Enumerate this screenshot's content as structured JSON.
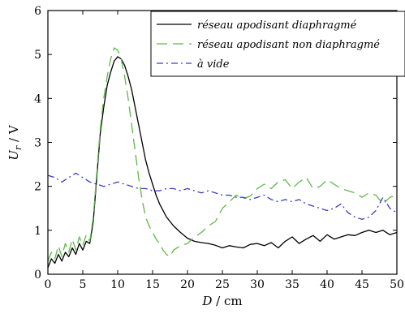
{
  "chart_data": {
    "type": "line",
    "xlabel_var": "D",
    "xlabel_unit": "cm",
    "ylabel_var": "U",
    "ylabel_sub": "r",
    "ylabel_unit": "V",
    "xlim": [
      0,
      50
    ],
    "ylim": [
      0,
      6
    ],
    "xticks": [
      0,
      5,
      10,
      15,
      20,
      25,
      30,
      35,
      40,
      45,
      50
    ],
    "yticks": [
      0,
      1,
      2,
      3,
      4,
      5,
      6
    ],
    "grid": false,
    "legend_position": "top-right",
    "series": [
      {
        "name": "réseau apodisant diaphragmé",
        "color": "#000000",
        "dash": "solid",
        "x": [
          0,
          0.5,
          1,
          1.5,
          2,
          2.5,
          3,
          3.5,
          4,
          4.5,
          5,
          5.5,
          6,
          6.5,
          7,
          7.5,
          8,
          8.5,
          9,
          9.5,
          10,
          10.5,
          11,
          11.5,
          12,
          12.5,
          13,
          13.5,
          14,
          14.5,
          15,
          15.5,
          16,
          17,
          18,
          19,
          20,
          21,
          22,
          23,
          24,
          25,
          26,
          27,
          28,
          29,
          30,
          31,
          32,
          33,
          34,
          35,
          36,
          37,
          38,
          39,
          40,
          41,
          42,
          43,
          44,
          45,
          46,
          47,
          48,
          49,
          50
        ],
        "y": [
          0.15,
          0.35,
          0.25,
          0.45,
          0.3,
          0.5,
          0.4,
          0.6,
          0.45,
          0.7,
          0.55,
          0.75,
          0.7,
          1.2,
          2.2,
          3.2,
          3.8,
          4.3,
          4.6,
          4.85,
          4.95,
          4.9,
          4.75,
          4.5,
          4.2,
          3.8,
          3.4,
          3.0,
          2.6,
          2.3,
          2.05,
          1.8,
          1.6,
          1.3,
          1.1,
          0.95,
          0.82,
          0.75,
          0.72,
          0.7,
          0.66,
          0.6,
          0.65,
          0.62,
          0.6,
          0.68,
          0.7,
          0.65,
          0.72,
          0.6,
          0.75,
          0.85,
          0.7,
          0.8,
          0.88,
          0.75,
          0.9,
          0.8,
          0.85,
          0.9,
          0.88,
          0.95,
          1.0,
          0.95,
          1.0,
          0.9,
          0.95
        ]
      },
      {
        "name": "réseau apodisant non diaphragmé",
        "color": "#5fb84a",
        "dash": "long-dash",
        "x": [
          0,
          0.5,
          1,
          1.5,
          2,
          2.5,
          3,
          3.5,
          4,
          4.5,
          5,
          5.5,
          6,
          6.5,
          7,
          7.5,
          8,
          8.5,
          9,
          9.5,
          10,
          10.5,
          11,
          11.5,
          12,
          12.5,
          13,
          13.5,
          14,
          14.5,
          15,
          15.5,
          16,
          16.5,
          17,
          17.5,
          18,
          19,
          20,
          21,
          22,
          23,
          24,
          25,
          26,
          27,
          28,
          29,
          30,
          31,
          32,
          33,
          34,
          35,
          36,
          37,
          38,
          39,
          40,
          41,
          42,
          43,
          44,
          45,
          46,
          47,
          48,
          49,
          50
        ],
        "y": [
          0.3,
          0.5,
          0.35,
          0.65,
          0.4,
          0.7,
          0.5,
          0.8,
          0.55,
          0.85,
          0.65,
          0.9,
          0.75,
          1.3,
          2.3,
          3.3,
          4.0,
          4.5,
          4.9,
          5.15,
          5.1,
          4.9,
          4.5,
          4.0,
          3.4,
          2.8,
          2.2,
          1.7,
          1.3,
          1.1,
          0.95,
          0.8,
          0.7,
          0.55,
          0.45,
          0.4,
          0.55,
          0.65,
          0.7,
          0.85,
          0.95,
          1.1,
          1.2,
          1.5,
          1.65,
          1.8,
          1.72,
          1.78,
          1.95,
          2.05,
          1.95,
          2.1,
          2.15,
          1.95,
          2.1,
          2.2,
          1.95,
          2.0,
          2.15,
          2.05,
          1.95,
          1.9,
          1.85,
          1.75,
          1.85,
          1.8,
          1.6,
          1.75,
          1.8
        ]
      },
      {
        "name": "à vide",
        "color": "#3b3fbf",
        "dash": "dash-dot",
        "x": [
          0,
          1,
          2,
          3,
          4,
          5,
          6,
          7,
          8,
          9,
          10,
          11,
          12,
          13,
          14,
          15,
          16,
          17,
          18,
          19,
          20,
          21,
          22,
          23,
          24,
          25,
          26,
          27,
          28,
          29,
          30,
          31,
          32,
          33,
          34,
          35,
          36,
          37,
          38,
          39,
          40,
          41,
          42,
          43,
          44,
          45,
          46,
          47,
          48,
          49,
          50
        ],
        "y": [
          2.25,
          2.2,
          2.1,
          2.2,
          2.3,
          2.2,
          2.1,
          2.05,
          2.0,
          2.05,
          2.1,
          2.05,
          2.0,
          1.95,
          1.95,
          1.9,
          1.9,
          1.95,
          1.95,
          1.9,
          1.95,
          1.9,
          1.85,
          1.9,
          1.85,
          1.8,
          1.8,
          1.75,
          1.75,
          1.7,
          1.75,
          1.8,
          1.7,
          1.65,
          1.7,
          1.65,
          1.7,
          1.6,
          1.55,
          1.5,
          1.45,
          1.5,
          1.6,
          1.4,
          1.3,
          1.25,
          1.3,
          1.45,
          1.75,
          1.5,
          1.4
        ]
      }
    ]
  }
}
